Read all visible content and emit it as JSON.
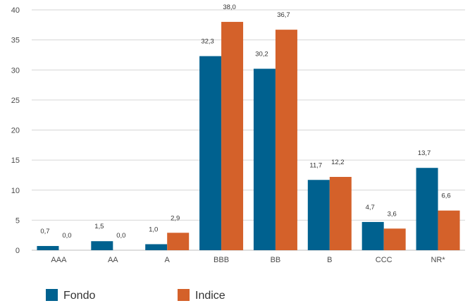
{
  "chart_data": {
    "type": "bar",
    "categories": [
      "AAA",
      "AA",
      "A",
      "BBB",
      "BB",
      "B",
      "CCC",
      "NR*"
    ],
    "series": [
      {
        "name": "Fondo",
        "color": "#00618f",
        "values": [
          0.7,
          1.5,
          1.0,
          32.3,
          30.2,
          11.7,
          4.7,
          13.7
        ],
        "labels": [
          "0,7",
          "1,5",
          "1,0",
          "32,3",
          "30,2",
          "11,7",
          "4,7",
          "13,7"
        ]
      },
      {
        "name": "Indice",
        "color": "#d4612a",
        "values": [
          0.0,
          0.0,
          2.9,
          38.0,
          36.7,
          12.2,
          3.6,
          6.6
        ],
        "labels": [
          "0,0",
          "0,0",
          "2,9",
          "38,0",
          "36,7",
          "12,2",
          "3,6",
          "6,6"
        ]
      }
    ],
    "ylim": [
      0,
      40
    ],
    "yticks": [
      0,
      5,
      10,
      15,
      20,
      25,
      30,
      35,
      40
    ],
    "grid": true,
    "legend_position": "bottom-left",
    "title": "",
    "xlabel": "",
    "ylabel": ""
  }
}
